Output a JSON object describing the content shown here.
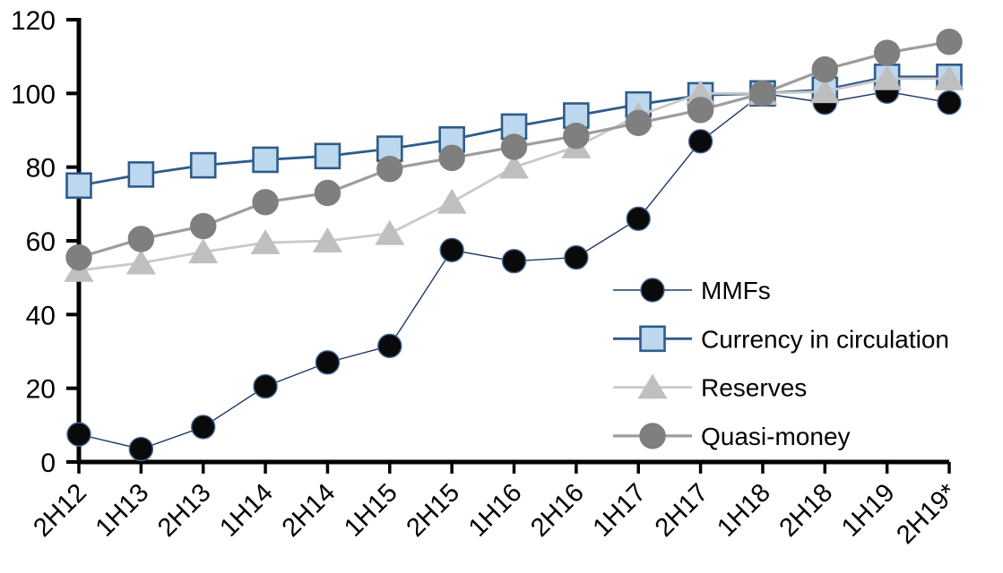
{
  "chart_data": {
    "type": "line",
    "title": "",
    "xlabel": "",
    "ylabel": "",
    "ylim": [
      0,
      120
    ],
    "yticks": [
      0,
      20,
      40,
      60,
      80,
      100,
      120
    ],
    "grid": false,
    "legend_position": "inside-right",
    "axis_color": "#000000",
    "background_color": "#ffffff",
    "categories": [
      "2H12",
      "1H13",
      "2H13",
      "1H14",
      "2H14",
      "1H15",
      "2H15",
      "1H16",
      "2H16",
      "1H17",
      "2H17",
      "1H18",
      "2H18",
      "1H19",
      "2H19*"
    ],
    "series": [
      {
        "name": "MMFs",
        "marker": "circle",
        "line_color": "#1f3864",
        "marker_fill": "#0a0a0a",
        "marker_stroke": "#44679b",
        "line_width": 1.4,
        "marker_size": 13,
        "values": [
          7.5,
          3.5,
          9.5,
          20.5,
          27,
          31.5,
          57.5,
          54.5,
          55.5,
          66,
          87,
          100,
          97.5,
          100.5,
          97.5
        ]
      },
      {
        "name": "Currency in circulation",
        "marker": "square",
        "line_color": "#2e5c8a",
        "marker_fill": "#bdd7ee",
        "marker_stroke": "#2e5c8a",
        "line_width": 2.8,
        "marker_size": 13.5,
        "values": [
          75,
          78,
          80.5,
          82,
          83,
          85,
          87.5,
          91,
          94,
          97,
          99.5,
          100,
          101,
          104.5,
          104.5
        ]
      },
      {
        "name": "Reserves",
        "marker": "triangle",
        "line_color": "#c9c9c9",
        "marker_fill": "#bfbfbf",
        "marker_stroke": "#bfbfbf",
        "line_width": 2.8,
        "marker_size": 14,
        "values": [
          52,
          54,
          57,
          59.5,
          60,
          62,
          70.5,
          80,
          85.5,
          94,
          100,
          100,
          100.5,
          104,
          104
        ]
      },
      {
        "name": "Quasi-money",
        "marker": "circle",
        "line_color": "#9d9d9d",
        "marker_fill": "#7f7f7f",
        "marker_stroke": "#7f7f7f",
        "line_width": 3.2,
        "marker_size": 14,
        "values": [
          55.5,
          60.5,
          64,
          70.5,
          73,
          79.5,
          82.5,
          85.5,
          88.5,
          92,
          95.5,
          100,
          106.5,
          111,
          114
        ]
      }
    ]
  }
}
